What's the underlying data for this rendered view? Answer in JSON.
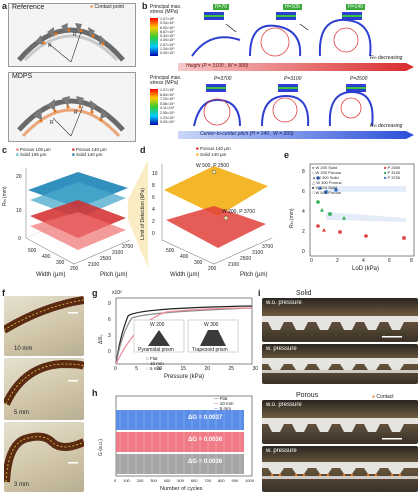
{
  "labels": {
    "a": "a",
    "b": "b",
    "c": "c",
    "d": "d",
    "e": "e",
    "f": "f",
    "g": "g",
    "h": "h",
    "i": "i"
  },
  "panel_a": {
    "reference": "Reference",
    "mdps": "MDPS",
    "contact_point": "Contact point",
    "r_rt": "R",
    "r_ro": "R",
    "r_ri": "R",
    "contact_color": "#e8741a"
  },
  "panel_b": {
    "stress_title_1": "Principal max. stress (MPa)",
    "stress_ticks_1": [
      "1.07×10¹",
      "9.34×10⁰",
      "8.00×10⁰",
      "6.67×10⁰",
      "5.34×10⁰",
      "4.00×10⁰",
      "2.67×10⁰",
      "1.34×10⁰",
      "0.00×10⁰"
    ],
    "stress_title_2": "Principal max. stress (MPa)",
    "stress_ticks_2": [
      "1.07×10¹",
      "8.84×10⁰",
      "7.20×10⁰",
      "5.56×10⁰",
      "4.11×10⁰",
      "2.55×10⁰",
      "1.23×10⁰",
      "0.00×10⁰"
    ],
    "heights": [
      "H=70",
      "H=105",
      "H=140"
    ],
    "pitches": [
      "P=3700",
      "P=3100",
      "P=2500"
    ],
    "arrow_1": "Height (P = 3100 , W = 300)",
    "arrow_2": "Center-to-center pitch (H = 140 , W = 300)",
    "r_decreasing_1": "R",
    "r_decreasing_2": "R",
    "decreasing": "decreasing"
  },
  "panel_c": {
    "legend": [
      "Porous 105 µm",
      "Porous 140 µm",
      "Solid 105 µm",
      "Solid 140 µm"
    ],
    "zlabel": "R",
    "xlabel": "Width (µm)",
    "ylabel": "Pitch (µm)",
    "zticks": [
      "20",
      "10",
      "0"
    ],
    "xticks": [
      "500",
      "400",
      "300",
      "200"
    ],
    "yticks": [
      "2100",
      "2500",
      "3100",
      "3700"
    ]
  },
  "panel_d": {
    "legend": [
      "Porous 140 µm",
      "Solid 140 µm"
    ],
    "zlabel": "Limit of Detection (kPa)",
    "zticks": [
      "10",
      "8",
      "6",
      "4",
      "2",
      "0"
    ],
    "xlabel": "Width (µm)",
    "ylabel": "Pitch (µm)",
    "xticks": [
      "500",
      "400",
      "300",
      "200"
    ],
    "yticks": [
      "2100",
      "2500",
      "3100",
      "3700"
    ],
    "ann_1": "W 500, P 2500",
    "ann_2": "W 200, P 3700"
  },
  "panel_e": {
    "ylabel": "R",
    "xlabel": "LoD (kPa)",
    "yticks": [
      "8",
      "6",
      "4",
      "2",
      "0"
    ],
    "xticks": [
      "0",
      "2",
      "4",
      "6",
      "8"
    ],
    "legend_shape": [
      "W 200 Solid",
      "W 200 Porous",
      "W 300 Solid",
      "W 300 Porous",
      "W 500 Solid",
      "W 500 Porous"
    ],
    "legend_color": [
      "P 2500",
      "P 3100",
      "P 3700"
    ],
    "colors": {
      "p2500": "#e23b3b",
      "p3100": "#2eae4c",
      "p3700": "#2f6fd0"
    }
  },
  "panel_f": {
    "captions": [
      "10 mm",
      "5 mm",
      "3 mm"
    ]
  },
  "panel_g": {
    "ylabel": "ΔI/I₀",
    "yexp": "x10²",
    "xlabel": "Pressure (kPa)",
    "yticks": [
      "9",
      "6",
      "3",
      "0"
    ],
    "xticks": [
      "0",
      "5",
      "10",
      "15",
      "20",
      "25",
      "30"
    ],
    "prism_1": "W 200",
    "prism_1_name": "Pyramidal prism",
    "prism_2": "W 300",
    "prism_2_name": "Trapezoid prism",
    "legend": [
      "Flat",
      "10 mm",
      "5 mm"
    ]
  },
  "panel_h": {
    "ylabel": "G (a.u.)",
    "xlabel": "Number of cycles",
    "xticks": [
      "0",
      "100",
      "200",
      "300",
      "400",
      "500",
      "600",
      "700",
      "800",
      "900",
      "1000"
    ],
    "legend": [
      "Flat",
      "10 mm",
      "5 mm"
    ],
    "deltas": [
      "ΔG = 0.0037",
      "ΔG = 0.0036",
      "ΔG = 0.0036"
    ],
    "colors": [
      "#5b8ee8",
      "#f07a86",
      "#a6a6a6"
    ]
  },
  "panel_i": {
    "solid": "Solid",
    "porous": "Porous",
    "wo": "w.o. pressure",
    "w": "w. pressure",
    "contact": "Contact"
  }
}
